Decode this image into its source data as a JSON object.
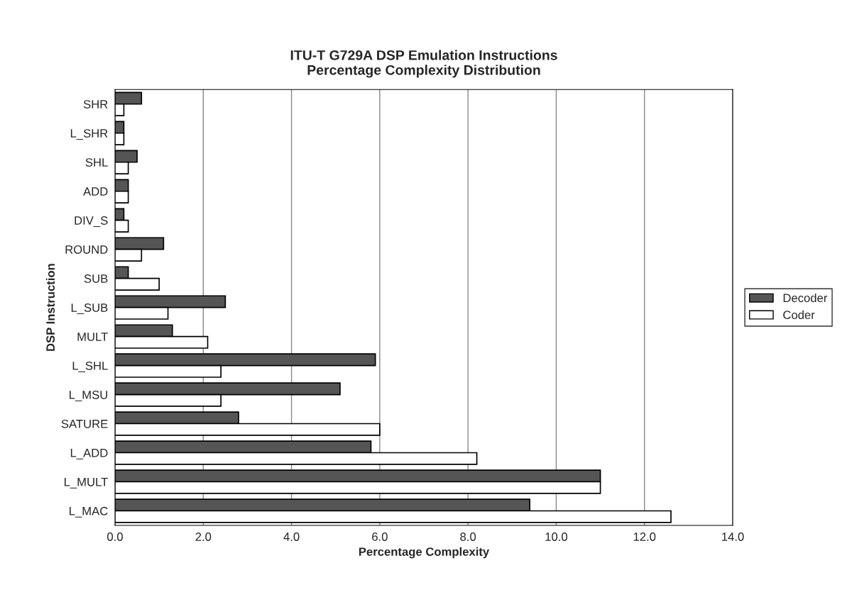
{
  "chart_data": {
    "type": "bar",
    "orientation": "horizontal",
    "title": "ITU-T G729A DSP Emulation Instructions\nPercentage Complexity Distribution",
    "xlabel": "Percentage Complexity",
    "ylabel": "DSP Instruction",
    "categories": [
      "SHR",
      "L_SHR",
      "SHL",
      "ADD",
      "DIV_S",
      "ROUND",
      "SUB",
      "L_SUB",
      "MULT",
      "L_SHL",
      "L_MSU",
      "SATURE",
      "L_ADD",
      "L_MULT",
      "L_MAC"
    ],
    "series": [
      {
        "name": "Decoder",
        "color": "#555555",
        "values": [
          0.6,
          0.2,
          0.5,
          0.3,
          0.2,
          1.1,
          0.3,
          2.5,
          1.3,
          5.9,
          5.1,
          2.8,
          5.8,
          11.0,
          9.4
        ]
      },
      {
        "name": "Coder",
        "color": "#ffffff",
        "values": [
          0.2,
          0.2,
          0.3,
          0.3,
          0.3,
          0.6,
          1.0,
          1.2,
          2.1,
          2.4,
          2.4,
          6.0,
          8.2,
          11.0,
          12.6
        ]
      }
    ],
    "xlim": [
      0,
      14
    ],
    "xticks": [
      {
        "value": 0,
        "label": "0.0"
      },
      {
        "value": 2,
        "label": "2.0"
      },
      {
        "value": 4,
        "label": "4.0"
      },
      {
        "value": 6,
        "label": "6.0"
      },
      {
        "value": 8,
        "label": "8.0"
      },
      {
        "value": 10,
        "label": "10.0"
      },
      {
        "value": 12,
        "label": "12.0"
      },
      {
        "value": 14,
        "label": "14.0"
      }
    ],
    "grid": "x",
    "legend": "right"
  }
}
